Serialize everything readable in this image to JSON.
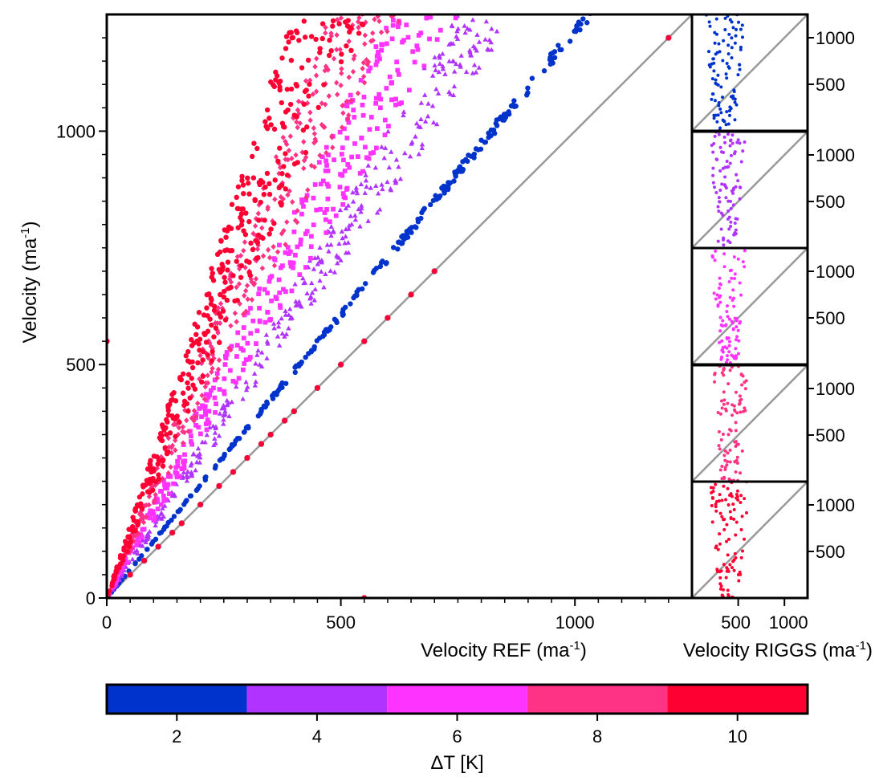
{
  "chart_data": [
    {
      "type": "scatter",
      "panel": "main",
      "xlabel": "Velocity REF (ma",
      "xlabel_sup": "-1",
      "xlabel_end": ")",
      "ylabel": "Velocity (ma",
      "ylabel_sup": "-1",
      "ylabel_end": ")",
      "xlim": [
        0,
        1250
      ],
      "ylim": [
        0,
        1250
      ],
      "x_ticks": [
        0,
        500,
        1000
      ],
      "y_ticks": [
        0,
        500,
        1000
      ],
      "diagonal": "1:1 line",
      "series": [
        {
          "dT": 2,
          "color": "#0033cc",
          "marker": "circle",
          "slope": 1.215,
          "points": 260
        },
        {
          "dT": 4,
          "color": "#b033ff",
          "marker": "triangle",
          "slope": 1.55,
          "points": 340
        },
        {
          "dT": 6,
          "color": "#ff33ff",
          "marker": "square",
          "slope": 1.87,
          "points": 340
        },
        {
          "dT": 8,
          "color": "#ff3385",
          "marker": "diamond",
          "slope": 2.3,
          "points": 340
        },
        {
          "dT": 10,
          "color": "#ff0033",
          "marker": "circle",
          "slope": 2.7,
          "points": 380
        }
      ],
      "extra_points_dT10": [
        [
          0,
          550
        ],
        [
          550,
          0
        ],
        [
          1200,
          1200
        ],
        [
          700,
          700
        ],
        [
          650,
          650
        ],
        [
          600,
          600
        ],
        [
          550,
          550
        ],
        [
          500,
          500
        ],
        [
          450,
          450
        ],
        [
          400,
          400
        ],
        [
          380,
          380
        ],
        [
          350,
          350
        ],
        [
          330,
          330
        ],
        [
          300,
          300
        ],
        [
          270,
          270
        ],
        [
          240,
          240
        ],
        [
          200,
          200
        ],
        [
          160,
          160
        ],
        [
          140,
          140
        ],
        [
          110,
          110
        ],
        [
          80,
          80
        ],
        [
          50,
          50
        ]
      ]
    },
    {
      "type": "scatter",
      "panel": "side",
      "xlabel": "Velocity RIGGS (ma",
      "xlabel_sup": "-1",
      "xlabel_end": ")",
      "x_tick_labels": [
        "500",
        "1000"
      ],
      "y_tick_labels": [
        "500",
        "1000"
      ],
      "xlim": [
        0,
        1250
      ],
      "ylim": [
        0,
        1250
      ],
      "diagonal": "1:1 line",
      "panels": [
        {
          "dT": 2,
          "color": "#0033cc",
          "x_center": 350,
          "x_spread": 220,
          "y_min": 0,
          "y_max": 1250,
          "points": 95
        },
        {
          "dT": 4,
          "color": "#b033ff",
          "x_center": 380,
          "x_spread": 200,
          "y_min": 0,
          "y_max": 1250,
          "points": 90
        },
        {
          "dT": 6,
          "color": "#ff33ff",
          "x_center": 400,
          "x_spread": 200,
          "y_min": 0,
          "y_max": 1250,
          "points": 90
        },
        {
          "dT": 8,
          "color": "#ff3385",
          "x_center": 420,
          "x_spread": 200,
          "y_min": 0,
          "y_max": 1250,
          "points": 90
        },
        {
          "dT": 10,
          "color": "#ff0033",
          "x_center": 400,
          "x_spread": 220,
          "y_min": 0,
          "y_max": 1250,
          "points": 95
        }
      ]
    },
    {
      "type": "colorbar",
      "label": "ΔT [K]",
      "range": [
        1,
        11
      ],
      "bins": [
        {
          "from": 1,
          "to": 3,
          "color": "#0033cc"
        },
        {
          "from": 3,
          "to": 5,
          "color": "#b033ff"
        },
        {
          "from": 5,
          "to": 7,
          "color": "#ff33ff"
        },
        {
          "from": 7,
          "to": 9,
          "color": "#ff3385"
        },
        {
          "from": 9,
          "to": 11,
          "color": "#ff0033"
        }
      ],
      "ticks": [
        2,
        4,
        6,
        8,
        10
      ]
    }
  ]
}
